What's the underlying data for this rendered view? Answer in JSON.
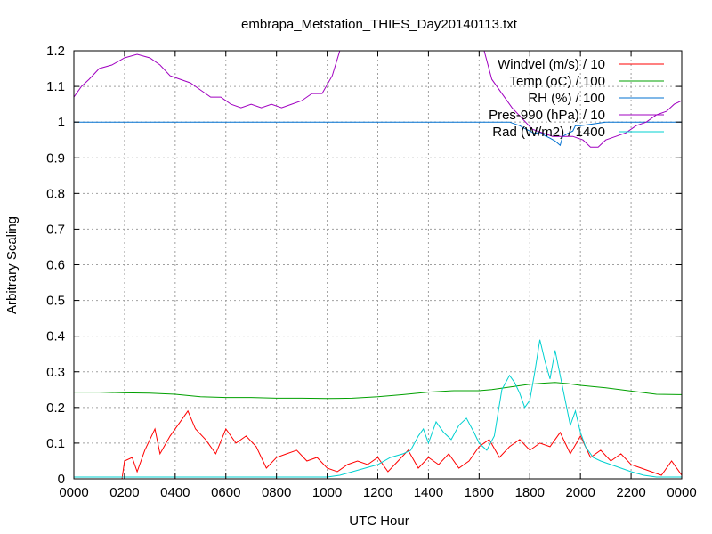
{
  "chart_data": {
    "type": "line",
    "title": "embrapa_Metstation_THIES_Day20140113.txt",
    "xlabel": "UTC Hour",
    "ylabel": "Arbitrary Scaling",
    "xlim": [
      0,
      24
    ],
    "ylim": [
      0,
      1.2
    ],
    "grid": true,
    "legend_placement": "top-right",
    "x_ticks": [
      {
        "value": 0,
        "label": "0000"
      },
      {
        "value": 2,
        "label": "0200"
      },
      {
        "value": 4,
        "label": "0400"
      },
      {
        "value": 6,
        "label": "0600"
      },
      {
        "value": 8,
        "label": "0800"
      },
      {
        "value": 10,
        "label": "1000"
      },
      {
        "value": 12,
        "label": "1200"
      },
      {
        "value": 14,
        "label": "1400"
      },
      {
        "value": 16,
        "label": "1600"
      },
      {
        "value": 18,
        "label": "1800"
      },
      {
        "value": 20,
        "label": "2000"
      },
      {
        "value": 22,
        "label": "2200"
      },
      {
        "value": 24,
        "label": "0000"
      }
    ],
    "y_ticks": [
      {
        "value": 0,
        "label": "0"
      },
      {
        "value": 0.1,
        "label": "0.1"
      },
      {
        "value": 0.2,
        "label": "0.2"
      },
      {
        "value": 0.3,
        "label": "0.3"
      },
      {
        "value": 0.4,
        "label": "0.4"
      },
      {
        "value": 0.5,
        "label": "0.5"
      },
      {
        "value": 0.6,
        "label": "0.6"
      },
      {
        "value": 0.7,
        "label": "0.7"
      },
      {
        "value": 0.8,
        "label": "0.8"
      },
      {
        "value": 0.9,
        "label": "0.9"
      },
      {
        "value": 1.0,
        "label": "1"
      },
      {
        "value": 1.1,
        "label": "1.1"
      },
      {
        "value": 1.2,
        "label": "1.2"
      }
    ],
    "series": [
      {
        "name": "Windvel (m/s) / 10",
        "color": "#ff0000",
        "points": [
          [
            0,
            0
          ],
          [
            1.9,
            0
          ],
          [
            2.0,
            0.05
          ],
          [
            2.3,
            0.06
          ],
          [
            2.5,
            0.02
          ],
          [
            2.8,
            0.08
          ],
          [
            3.2,
            0.14
          ],
          [
            3.4,
            0.07
          ],
          [
            3.8,
            0.12
          ],
          [
            4.2,
            0.16
          ],
          [
            4.5,
            0.19
          ],
          [
            4.8,
            0.14
          ],
          [
            5.2,
            0.11
          ],
          [
            5.6,
            0.07
          ],
          [
            6.0,
            0.14
          ],
          [
            6.4,
            0.1
          ],
          [
            6.8,
            0.12
          ],
          [
            7.2,
            0.09
          ],
          [
            7.6,
            0.03
          ],
          [
            8.0,
            0.06
          ],
          [
            8.4,
            0.07
          ],
          [
            8.8,
            0.08
          ],
          [
            9.2,
            0.05
          ],
          [
            9.6,
            0.06
          ],
          [
            10.0,
            0.03
          ],
          [
            10.4,
            0.02
          ],
          [
            10.8,
            0.04
          ],
          [
            11.2,
            0.05
          ],
          [
            11.6,
            0.04
          ],
          [
            12.0,
            0.06
          ],
          [
            12.4,
            0.02
          ],
          [
            12.8,
            0.05
          ],
          [
            13.2,
            0.08
          ],
          [
            13.6,
            0.03
          ],
          [
            14.0,
            0.06
          ],
          [
            14.4,
            0.04
          ],
          [
            14.8,
            0.07
          ],
          [
            15.2,
            0.03
          ],
          [
            15.6,
            0.05
          ],
          [
            16.0,
            0.09
          ],
          [
            16.4,
            0.11
          ],
          [
            16.8,
            0.06
          ],
          [
            17.2,
            0.09
          ],
          [
            17.6,
            0.11
          ],
          [
            18.0,
            0.08
          ],
          [
            18.4,
            0.1
          ],
          [
            18.8,
            0.09
          ],
          [
            19.2,
            0.13
          ],
          [
            19.6,
            0.07
          ],
          [
            20.0,
            0.12
          ],
          [
            20.4,
            0.06
          ],
          [
            20.8,
            0.08
          ],
          [
            21.2,
            0.05
          ],
          [
            21.6,
            0.07
          ],
          [
            22.0,
            0.04
          ],
          [
            22.4,
            0.03
          ],
          [
            22.8,
            0.02
          ],
          [
            23.2,
            0.01
          ],
          [
            23.6,
            0.05
          ],
          [
            24.0,
            0.01
          ]
        ]
      },
      {
        "name": "Temp (oC) / 100",
        "color": "#00a000",
        "points": [
          [
            0,
            0.243
          ],
          [
            1,
            0.243
          ],
          [
            2,
            0.241
          ],
          [
            3,
            0.24
          ],
          [
            4,
            0.237
          ],
          [
            5,
            0.23
          ],
          [
            6,
            0.228
          ],
          [
            7,
            0.228
          ],
          [
            8,
            0.226
          ],
          [
            9,
            0.226
          ],
          [
            10,
            0.225
          ],
          [
            11,
            0.226
          ],
          [
            12,
            0.23
          ],
          [
            13,
            0.236
          ],
          [
            14,
            0.243
          ],
          [
            15,
            0.247
          ],
          [
            16,
            0.247
          ],
          [
            16.5,
            0.25
          ],
          [
            17,
            0.255
          ],
          [
            18,
            0.265
          ],
          [
            18.5,
            0.268
          ],
          [
            19,
            0.27
          ],
          [
            19.5,
            0.267
          ],
          [
            20,
            0.262
          ],
          [
            21,
            0.255
          ],
          [
            22,
            0.246
          ],
          [
            23,
            0.237
          ],
          [
            24,
            0.236
          ]
        ]
      },
      {
        "name": "RH (%) / 100",
        "color": "#0070d0",
        "points": [
          [
            0,
            1.0
          ],
          [
            17.2,
            1.0
          ],
          [
            17.4,
            0.995
          ],
          [
            17.6,
            0.99
          ],
          [
            17.8,
            0.982
          ],
          [
            18.0,
            0.975
          ],
          [
            18.2,
            0.968
          ],
          [
            18.4,
            0.972
          ],
          [
            18.6,
            0.962
          ],
          [
            18.8,
            0.955
          ],
          [
            19.0,
            0.947
          ],
          [
            19.2,
            0.935
          ],
          [
            19.3,
            0.96
          ],
          [
            19.5,
            0.968
          ],
          [
            19.7,
            0.975
          ],
          [
            19.8,
            0.99
          ],
          [
            20.0,
            0.99
          ],
          [
            20.5,
            0.995
          ],
          [
            21.0,
            1.0
          ],
          [
            24.0,
            1.0
          ]
        ]
      },
      {
        "name": "Pres-990 (hPa) / 10",
        "color": "#a000c0",
        "points": [
          [
            0,
            1.07
          ],
          [
            0.3,
            1.1
          ],
          [
            0.6,
            1.12
          ],
          [
            1.0,
            1.15
          ],
          [
            1.5,
            1.16
          ],
          [
            2.0,
            1.18
          ],
          [
            2.5,
            1.19
          ],
          [
            3.0,
            1.18
          ],
          [
            3.4,
            1.16
          ],
          [
            3.8,
            1.13
          ],
          [
            4.2,
            1.12
          ],
          [
            4.6,
            1.11
          ],
          [
            5.0,
            1.09
          ],
          [
            5.4,
            1.07
          ],
          [
            5.8,
            1.07
          ],
          [
            6.2,
            1.05
          ],
          [
            6.6,
            1.04
          ],
          [
            7.0,
            1.05
          ],
          [
            7.4,
            1.04
          ],
          [
            7.8,
            1.05
          ],
          [
            8.2,
            1.04
          ],
          [
            8.6,
            1.05
          ],
          [
            9.0,
            1.06
          ],
          [
            9.4,
            1.08
          ],
          [
            9.8,
            1.08
          ],
          [
            10.2,
            1.13
          ],
          [
            10.5,
            1.2
          ],
          [
            16.2,
            1.2
          ],
          [
            16.5,
            1.12
          ],
          [
            16.9,
            1.08
          ],
          [
            17.3,
            1.04
          ],
          [
            17.7,
            1.01
          ],
          [
            18.1,
            0.98
          ],
          [
            18.5,
            0.97
          ],
          [
            18.9,
            0.96
          ],
          [
            19.3,
            0.96
          ],
          [
            19.7,
            0.96
          ],
          [
            20.1,
            0.95
          ],
          [
            20.4,
            0.93
          ],
          [
            20.7,
            0.93
          ],
          [
            21.0,
            0.95
          ],
          [
            21.4,
            0.96
          ],
          [
            21.8,
            0.97
          ],
          [
            22.2,
            0.99
          ],
          [
            22.6,
            1.0
          ],
          [
            23.0,
            1.02
          ],
          [
            23.4,
            1.03
          ],
          [
            23.7,
            1.05
          ],
          [
            24.0,
            1.06
          ]
        ]
      },
      {
        "name": "Rad (W/m2) / 1400",
        "color": "#00d0d0",
        "points": [
          [
            0,
            0.005
          ],
          [
            10.0,
            0.005
          ],
          [
            10.5,
            0.01
          ],
          [
            11.0,
            0.02
          ],
          [
            11.5,
            0.03
          ],
          [
            12.0,
            0.04
          ],
          [
            12.5,
            0.06
          ],
          [
            13.0,
            0.07
          ],
          [
            13.3,
            0.08
          ],
          [
            13.6,
            0.12
          ],
          [
            13.8,
            0.14
          ],
          [
            14.0,
            0.1
          ],
          [
            14.3,
            0.16
          ],
          [
            14.6,
            0.13
          ],
          [
            14.9,
            0.11
          ],
          [
            15.2,
            0.15
          ],
          [
            15.5,
            0.17
          ],
          [
            15.8,
            0.13
          ],
          [
            16.0,
            0.1
          ],
          [
            16.3,
            0.08
          ],
          [
            16.6,
            0.12
          ],
          [
            16.9,
            0.25
          ],
          [
            17.2,
            0.29
          ],
          [
            17.4,
            0.27
          ],
          [
            17.6,
            0.24
          ],
          [
            17.8,
            0.2
          ],
          [
            18.0,
            0.22
          ],
          [
            18.2,
            0.3
          ],
          [
            18.4,
            0.39
          ],
          [
            18.6,
            0.33
          ],
          [
            18.8,
            0.28
          ],
          [
            19.0,
            0.36
          ],
          [
            19.2,
            0.29
          ],
          [
            19.4,
            0.22
          ],
          [
            19.6,
            0.15
          ],
          [
            19.8,
            0.19
          ],
          [
            20.0,
            0.13
          ],
          [
            20.2,
            0.09
          ],
          [
            20.5,
            0.06
          ],
          [
            20.8,
            0.05
          ],
          [
            21.2,
            0.04
          ],
          [
            21.6,
            0.03
          ],
          [
            22.0,
            0.02
          ],
          [
            22.5,
            0.01
          ],
          [
            23.0,
            0.005
          ],
          [
            24.0,
            0.005
          ]
        ]
      }
    ]
  }
}
